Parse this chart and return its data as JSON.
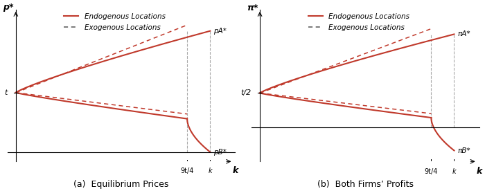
{
  "fig_width": 7.0,
  "fig_height": 2.76,
  "dpi": 100,
  "bg_color": "#ffffff",
  "red": "#c0392b",
  "dark_gray": "#555555",
  "vert_line_color": "#aaaaaa",
  "t_val": 0.5,
  "k_thresh": 0.82,
  "k_bar": 0.93,
  "subplot_a": {
    "ylabel_top": "p*",
    "xlabel_right": "k",
    "label_t": "t",
    "label_pA": "pA*",
    "label_pB": "pB*",
    "label_9t4": "9t/4",
    "label_kbar": "k",
    "caption": "(a)  Equilibrium Prices"
  },
  "subplot_b": {
    "ylabel_top": "π*",
    "xlabel_right": "k",
    "label_t2": "t/2",
    "label_piA": "πA*",
    "label_piB": "πB*",
    "label_9t4": "9t/4",
    "label_kbar": "k",
    "caption": "(b)  Both Firms’ Profits"
  },
  "legend": {
    "endo": "Endogenous Locations",
    "exog": "Exogenous Locations"
  }
}
